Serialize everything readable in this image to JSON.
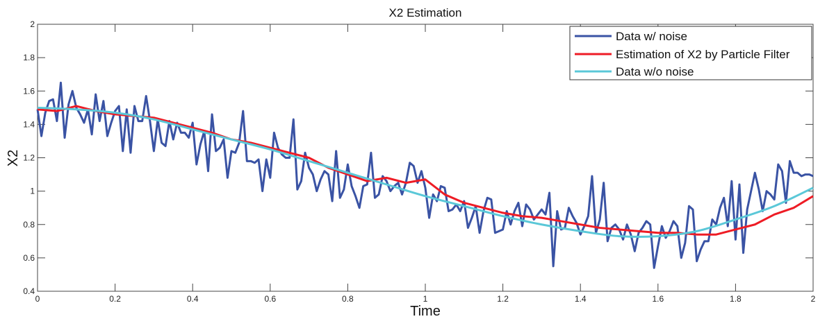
{
  "chart_data": {
    "type": "line",
    "title": "X2 Estimation",
    "xlabel": "Time",
    "ylabel": "X2",
    "xlim": [
      0,
      2
    ],
    "ylim": [
      0.4,
      2
    ],
    "xticks": [
      "0",
      "0.2",
      "0.4",
      "0.6",
      "0.8",
      "1",
      "1.2",
      "1.4",
      "1.6",
      "1.8",
      "2"
    ],
    "yticks": [
      "0.4",
      "0.6",
      "0.8",
      "1",
      "1.2",
      "1.4",
      "1.6",
      "1.8",
      "2"
    ],
    "grid": false,
    "legend_position": "top-right",
    "series": [
      {
        "name": "Data w/ noise",
        "color": "#3a53a4",
        "x_start": 0,
        "x_step": 0.01,
        "values": [
          1.49,
          1.33,
          1.47,
          1.54,
          1.55,
          1.42,
          1.65,
          1.32,
          1.52,
          1.6,
          1.5,
          1.46,
          1.41,
          1.49,
          1.34,
          1.58,
          1.42,
          1.54,
          1.33,
          1.41,
          1.48,
          1.51,
          1.24,
          1.49,
          1.23,
          1.51,
          1.42,
          1.42,
          1.57,
          1.42,
          1.24,
          1.43,
          1.29,
          1.27,
          1.42,
          1.31,
          1.41,
          1.35,
          1.35,
          1.32,
          1.41,
          1.16,
          1.28,
          1.36,
          1.12,
          1.46,
          1.24,
          1.26,
          1.31,
          1.08,
          1.24,
          1.23,
          1.29,
          1.48,
          1.18,
          1.18,
          1.17,
          1.19,
          1.0,
          1.19,
          1.08,
          1.35,
          1.26,
          1.22,
          1.2,
          1.2,
          1.43,
          1.01,
          1.06,
          1.23,
          1.14,
          1.1,
          1.0,
          1.07,
          1.12,
          1.1,
          0.94,
          1.24,
          0.96,
          1.01,
          1.16,
          1.03,
          0.97,
          0.9,
          1.03,
          1.04,
          1.23,
          0.96,
          0.98,
          1.09,
          1.06,
          1.0,
          1.03,
          1.05,
          0.98,
          1.05,
          1.17,
          1.15,
          1.05,
          1.12,
          1.02,
          0.84,
          0.98,
          0.94,
          1.03,
          1.02,
          0.88,
          0.89,
          0.92,
          0.88,
          0.94,
          0.78,
          0.84,
          0.91,
          0.75,
          0.88,
          0.96,
          0.95,
          0.75,
          0.76,
          0.77,
          0.88,
          0.8,
          0.88,
          0.93,
          0.79,
          0.92,
          0.89,
          0.83,
          0.86,
          0.89,
          0.86,
          0.99,
          0.55,
          0.88,
          0.77,
          0.78,
          0.9,
          0.85,
          0.81,
          0.74,
          0.79,
          0.85,
          1.09,
          0.75,
          0.83,
          1.05,
          0.7,
          0.78,
          0.8,
          0.77,
          0.71,
          0.8,
          0.74,
          0.64,
          0.75,
          0.78,
          0.82,
          0.8,
          0.54,
          0.67,
          0.79,
          0.72,
          0.76,
          0.82,
          0.79,
          0.6,
          0.69,
          0.91,
          0.89,
          0.58,
          0.65,
          0.7,
          0.7,
          0.83,
          0.8,
          0.9,
          0.96,
          0.79,
          1.06,
          0.71,
          1.04,
          0.63,
          0.89,
          1.0,
          1.11,
          1.01,
          0.88,
          1.0,
          0.98,
          0.95,
          1.16,
          1.12,
          0.93,
          1.18,
          1.11,
          1.11,
          1.09,
          1.1,
          1.1,
          1.09
        ]
      },
      {
        "name": "Estimation of X2 by Particle Filter",
        "color": "#ee1c25",
        "x_start": 0,
        "x_step": 0.05,
        "values": [
          1.49,
          1.48,
          1.51,
          1.48,
          1.46,
          1.45,
          1.44,
          1.41,
          1.38,
          1.35,
          1.31,
          1.29,
          1.26,
          1.23,
          1.2,
          1.14,
          1.1,
          1.06,
          1.08,
          1.05,
          1.07,
          0.98,
          0.93,
          0.9,
          0.87,
          0.85,
          0.84,
          0.82,
          0.8,
          0.78,
          0.77,
          0.76,
          0.75,
          0.75,
          0.74,
          0.74,
          0.77,
          0.8,
          0.86,
          0.9,
          0.97
        ]
      },
      {
        "name": "Data w/o noise",
        "color": "#5bc8d8",
        "x_start": 0,
        "x_step": 0.1,
        "values": [
          1.5,
          1.49,
          1.47,
          1.43,
          1.37,
          1.31,
          1.25,
          1.18,
          1.11,
          1.04,
          0.97,
          0.91,
          0.85,
          0.8,
          0.76,
          0.73,
          0.73,
          0.76,
          0.83,
          0.91,
          1.02
        ]
      }
    ]
  }
}
